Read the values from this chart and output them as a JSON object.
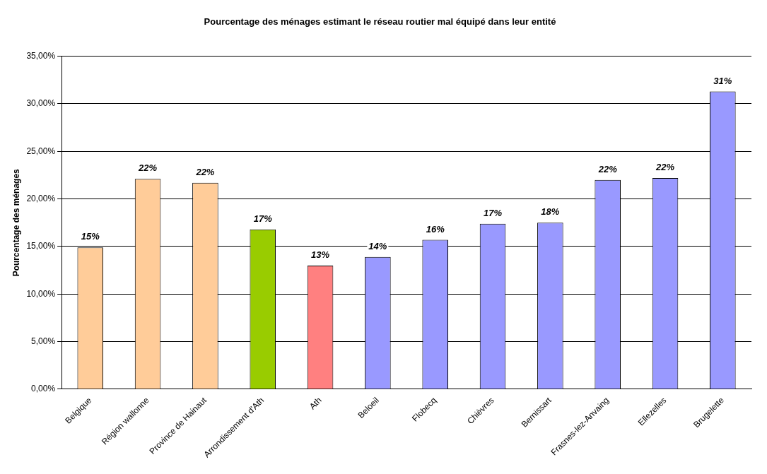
{
  "chart_data": {
    "type": "bar",
    "title": "Pourcentage des ménages estimant le réseau routier mal équipé dans leur entité",
    "ylabel": "Pourcentage des ménages",
    "categories": [
      "Belgique",
      "Région wallonne",
      "Province de Hainaut",
      "Arrondissement d'Ath",
      "Ath",
      "Beloeil",
      "Flobecq",
      "Chièvres",
      "Bernissart",
      "Frasnes-lez-Anvaing",
      "Ellezelles",
      "Brugelette"
    ],
    "values": [
      14.9,
      22.1,
      21.7,
      16.8,
      13.0,
      13.9,
      15.7,
      17.4,
      17.5,
      22.0,
      22.2,
      31.3
    ],
    "colors": [
      "#ffcc99",
      "#ffcc99",
      "#ffcc99",
      "#99cc00",
      "#ff8080",
      "#9999ff",
      "#9999ff",
      "#9999ff",
      "#9999ff",
      "#9999ff",
      "#9999ff",
      "#9999ff"
    ],
    "value_labels": [
      "15%",
      "22%",
      "22%",
      "17%",
      "13%",
      "14%",
      "16%",
      "17%",
      "18%",
      "22%",
      "22%",
      "31%"
    ],
    "ylim": [
      0,
      35
    ],
    "yticks": [
      {
        "value": 0,
        "label": "0,00%"
      },
      {
        "value": 5,
        "label": "5,00%"
      },
      {
        "value": 10,
        "label": "10,00%"
      },
      {
        "value": 15,
        "label": "15,00%"
      },
      {
        "value": 20,
        "label": "20,00%"
      },
      {
        "value": 25,
        "label": "25,00%"
      },
      {
        "value": 30,
        "label": "30,00%"
      },
      {
        "value": 35,
        "label": "35,00%"
      }
    ],
    "grid": "y",
    "legend": false
  }
}
